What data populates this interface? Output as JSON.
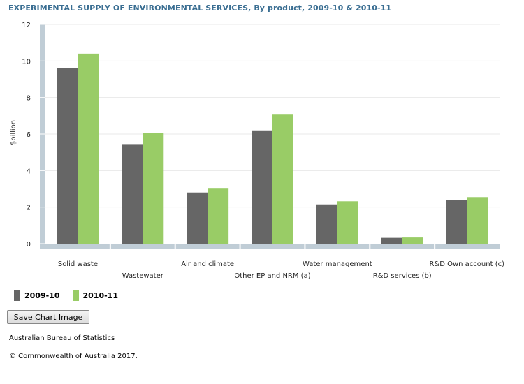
{
  "title": "EXPERIMENTAL SUPPLY OF ENVIRONMENTAL SERVICES, By product, 2009-10 & 2010-11",
  "colors": {
    "series1": "#666666",
    "series2": "#99cc66",
    "axis": "#c0cdd6",
    "grid": "#e8e8e8"
  },
  "chart_data": {
    "type": "bar",
    "title": "EXPERIMENTAL SUPPLY OF ENVIRONMENTAL SERVICES, By product, 2009-10 & 2010-11",
    "xlabel": "",
    "ylabel": "$billion",
    "ylim": [
      0,
      12
    ],
    "yticks": [
      "0",
      "2",
      "4",
      "6",
      "8",
      "10",
      "12"
    ],
    "grid": true,
    "legend": "bottom-left",
    "categories": [
      "Solid waste",
      "Wastewater",
      "Air and climate",
      "Other EP and NRM (a)",
      "Water management",
      "R&D services (b)",
      "R&D Own account (c)"
    ],
    "series": [
      {
        "name": "2009-10",
        "values": [
          9.6,
          5.45,
          2.8,
          6.2,
          2.15,
          0.32,
          2.38
        ]
      },
      {
        "name": "2010-11",
        "values": [
          10.4,
          6.05,
          3.05,
          7.1,
          2.32,
          0.34,
          2.55
        ]
      }
    ]
  },
  "buttons": {
    "save": "Save Chart Image"
  },
  "footer": {
    "source": "Australian Bureau of Statistics",
    "copyright": "© Commonwealth of Australia 2017."
  }
}
